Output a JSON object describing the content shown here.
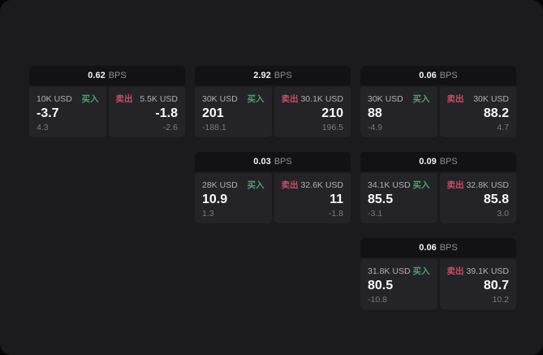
{
  "app": {
    "description": "FX spread quote tiles",
    "unit_label": "BPS",
    "buy_label": "买入",
    "sell_label": "卖出"
  },
  "colors": {
    "window_background": "#1b1b1d",
    "header_background": "#121214",
    "panel_background": "#242428",
    "buy_green": "#44a56a",
    "sell_red": "#cb4b64",
    "price_white": "#fafafa",
    "amount_gray": "#b1b1b2",
    "delta_gray": "#7b7b7c"
  },
  "cards": [
    {
      "bps": "0.62",
      "buy": {
        "amount": "10K USD",
        "price": "-3.7",
        "delta": "4.3"
      },
      "sell": {
        "amount": "5.5K USD",
        "price": "-1.8",
        "delta": "-2.6"
      }
    },
    {
      "bps": "2.92",
      "buy": {
        "amount": "30K USD",
        "price": "201",
        "delta": "-188.1"
      },
      "sell": {
        "amount": "30.1K USD",
        "price": "210",
        "delta": "196.5"
      }
    },
    {
      "bps": "0.06",
      "buy": {
        "amount": "30K USD",
        "price": "88",
        "delta": "-4.9"
      },
      "sell": {
        "amount": "30K USD",
        "price": "88.2",
        "delta": "4.7"
      }
    },
    {
      "bps": "0.03",
      "buy": {
        "amount": "28K USD",
        "price": "10.9",
        "delta": "1.3"
      },
      "sell": {
        "amount": "32.6K USD",
        "price": "11",
        "delta": "-1.8"
      }
    },
    {
      "bps": "0.09",
      "buy": {
        "amount": "34.1K USD",
        "price": "85.5",
        "delta": "-3.1"
      },
      "sell": {
        "amount": "32.8K USD",
        "price": "85.8",
        "delta": "3.0"
      }
    },
    {
      "bps": "0.06",
      "buy": {
        "amount": "31.8K USD",
        "price": "80.5",
        "delta": "-10.8"
      },
      "sell": {
        "amount": "39.1K USD",
        "price": "80.7",
        "delta": "10.2"
      }
    }
  ]
}
